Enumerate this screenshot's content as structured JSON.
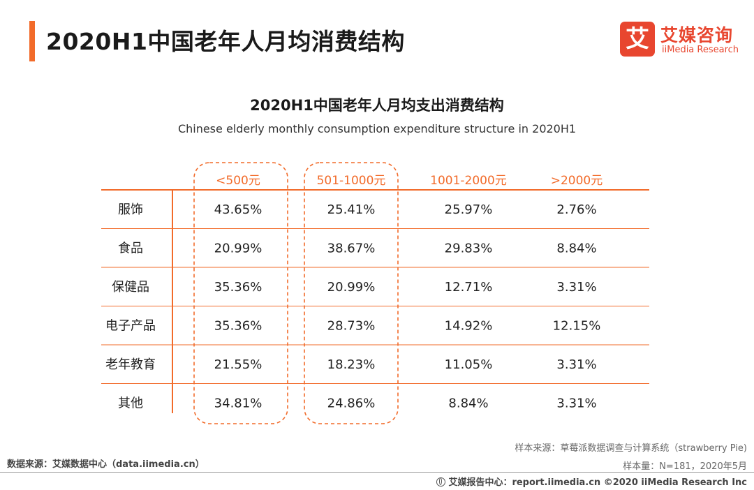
{
  "page": {
    "title": "2020H1中国老年人月均消费结构"
  },
  "logo": {
    "mark": "艾",
    "cn": "艾媒咨询",
    "en": "iiMedia Research"
  },
  "chart_data": {
    "type": "table",
    "title": "2020H1中国老年人月均支出消费结构",
    "subtitle": "Chinese elderly monthly consumption expenditure structure in 2020H1",
    "columns": [
      "<500元",
      "501-1000元",
      "1001-2000元",
      ">2000元"
    ],
    "rows": [
      "服饰",
      "食品",
      "保健品",
      "电子产品",
      "老年教育",
      "其他"
    ],
    "values": [
      [
        "43.65%",
        "25.41%",
        "25.97%",
        "2.76%"
      ],
      [
        "20.99%",
        "38.67%",
        "29.83%",
        "8.84%"
      ],
      [
        "35.36%",
        "20.99%",
        "12.71%",
        "3.31%"
      ],
      [
        "35.36%",
        "28.73%",
        "14.92%",
        "12.15%"
      ],
      [
        "21.55%",
        "18.23%",
        "11.05%",
        "3.31%"
      ],
      [
        "34.81%",
        "24.86%",
        "8.84%",
        "3.31%"
      ]
    ],
    "highlighted_columns": [
      "<500元",
      "501-1000元"
    ],
    "colors": {
      "accent": "#f26b2a",
      "header_text": "#f26b2a",
      "cell_text": "#222222",
      "divider": "#f26b2a"
    }
  },
  "source": {
    "left": "数据来源：艾媒数据中心（data.iimedia.cn）",
    "sample_source": "样本来源：草莓派数据调查与计算系统（strawberry Pie)",
    "sample_size": "样本量：N=181，2020年5月"
  },
  "footer": {
    "text": "艾媒报告中心：report.iimedia.cn ©2020 iiMedia Research Inc"
  }
}
